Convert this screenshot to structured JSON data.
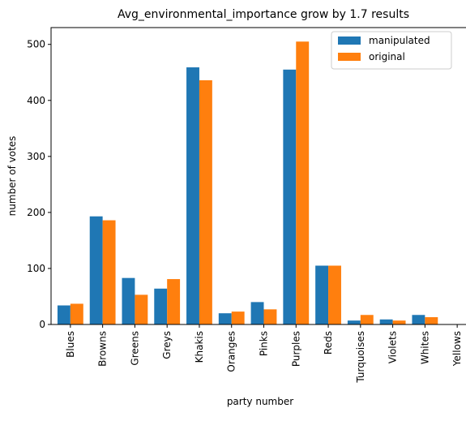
{
  "chart_data": {
    "type": "bar",
    "title": "Avg_environmental_importance grow by 1.7 results",
    "xlabel": "party number",
    "ylabel": "number of votes",
    "categories": [
      "Blues",
      "Browns",
      "Greens",
      "Greys",
      "Khakis",
      "Oranges",
      "Pinks",
      "Purples",
      "Reds",
      "Turquoises",
      "Violets",
      "Whites",
      "Yellows"
    ],
    "series": [
      {
        "name": "manipulated",
        "color": "#1f77b4",
        "values": [
          34,
          193,
          83,
          64,
          459,
          20,
          40,
          455,
          105,
          7,
          9,
          17,
          0
        ]
      },
      {
        "name": "original",
        "color": "#ff7f0e",
        "values": [
          37,
          186,
          53,
          81,
          436,
          23,
          27,
          505,
          105,
          17,
          7,
          13,
          0
        ]
      }
    ],
    "ylim": [
      0,
      530
    ],
    "yticks": [
      0,
      100,
      200,
      300,
      400,
      500
    ],
    "grid": false,
    "legend_position": "top-right"
  }
}
